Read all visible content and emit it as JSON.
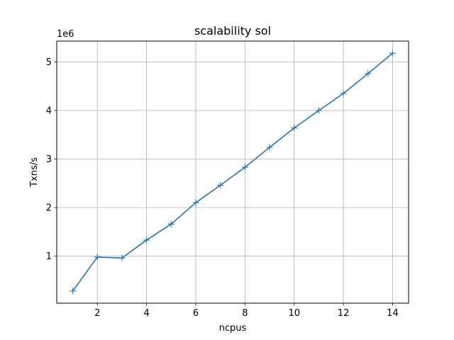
{
  "chart_data": {
    "type": "line",
    "title": "scalability sol",
    "xlabel": "ncpus",
    "ylabel": "Txns/s",
    "y_offset_label": "1e6",
    "xlim": [
      0.35,
      14.65
    ],
    "ylim": [
      0.03,
      5.43
    ],
    "xticks": [
      2,
      4,
      6,
      8,
      10,
      12,
      14
    ],
    "yticks": [
      1,
      2,
      3,
      4,
      5
    ],
    "grid": true,
    "marker": "+",
    "color": "#1f77b4",
    "series": [
      {
        "x": [
          1,
          2,
          3,
          4,
          5,
          6,
          7,
          8,
          9,
          10,
          11,
          12,
          13,
          14
        ],
        "values": [
          0.28,
          0.98,
          0.96,
          1.33,
          1.66,
          2.1,
          2.46,
          2.83,
          3.24,
          3.64,
          4.0,
          4.35,
          4.76,
          5.18
        ]
      }
    ]
  }
}
